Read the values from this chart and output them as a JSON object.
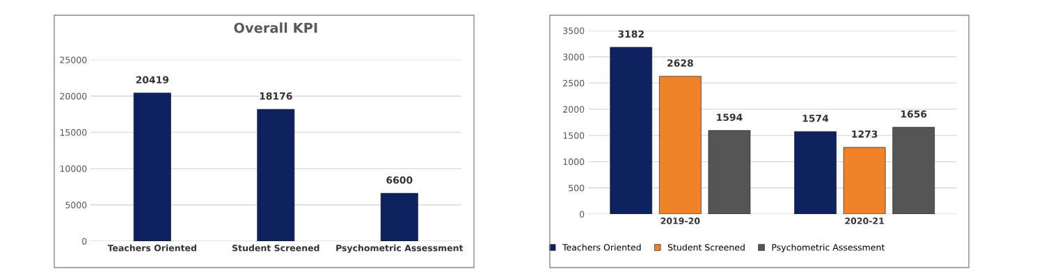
{
  "chart_data": [
    {
      "type": "bar",
      "title": "Overall KPI",
      "categories": [
        "Teachers Oriented",
        "Student Screened",
        "Psychometric Assessment"
      ],
      "series": [
        {
          "color": "#0d2060",
          "values": [
            20419,
            18176,
            6600
          ]
        }
      ],
      "ylim": [
        0,
        25000
      ],
      "yticks": [
        0,
        5000,
        10000,
        15000,
        20000,
        25000
      ],
      "grid": "y",
      "data_labels": true,
      "legend": false
    },
    {
      "type": "bar",
      "categories": [
        "2019-20",
        "2020-21"
      ],
      "series": [
        {
          "name": "Teachers Oriented",
          "color": "#0d2060",
          "values": [
            3182,
            1574
          ]
        },
        {
          "name": "Student Screened",
          "color": "#f0832a",
          "values": [
            2628,
            1273
          ]
        },
        {
          "name": "Psychometric Assessment",
          "color": "#555555",
          "values": [
            1594,
            1656
          ]
        }
      ],
      "ylim": [
        0,
        3500
      ],
      "yticks": [
        0,
        500,
        1000,
        1500,
        2000,
        2500,
        3000,
        3500
      ],
      "grid": "y",
      "data_labels": true,
      "legend": "bottom"
    }
  ]
}
